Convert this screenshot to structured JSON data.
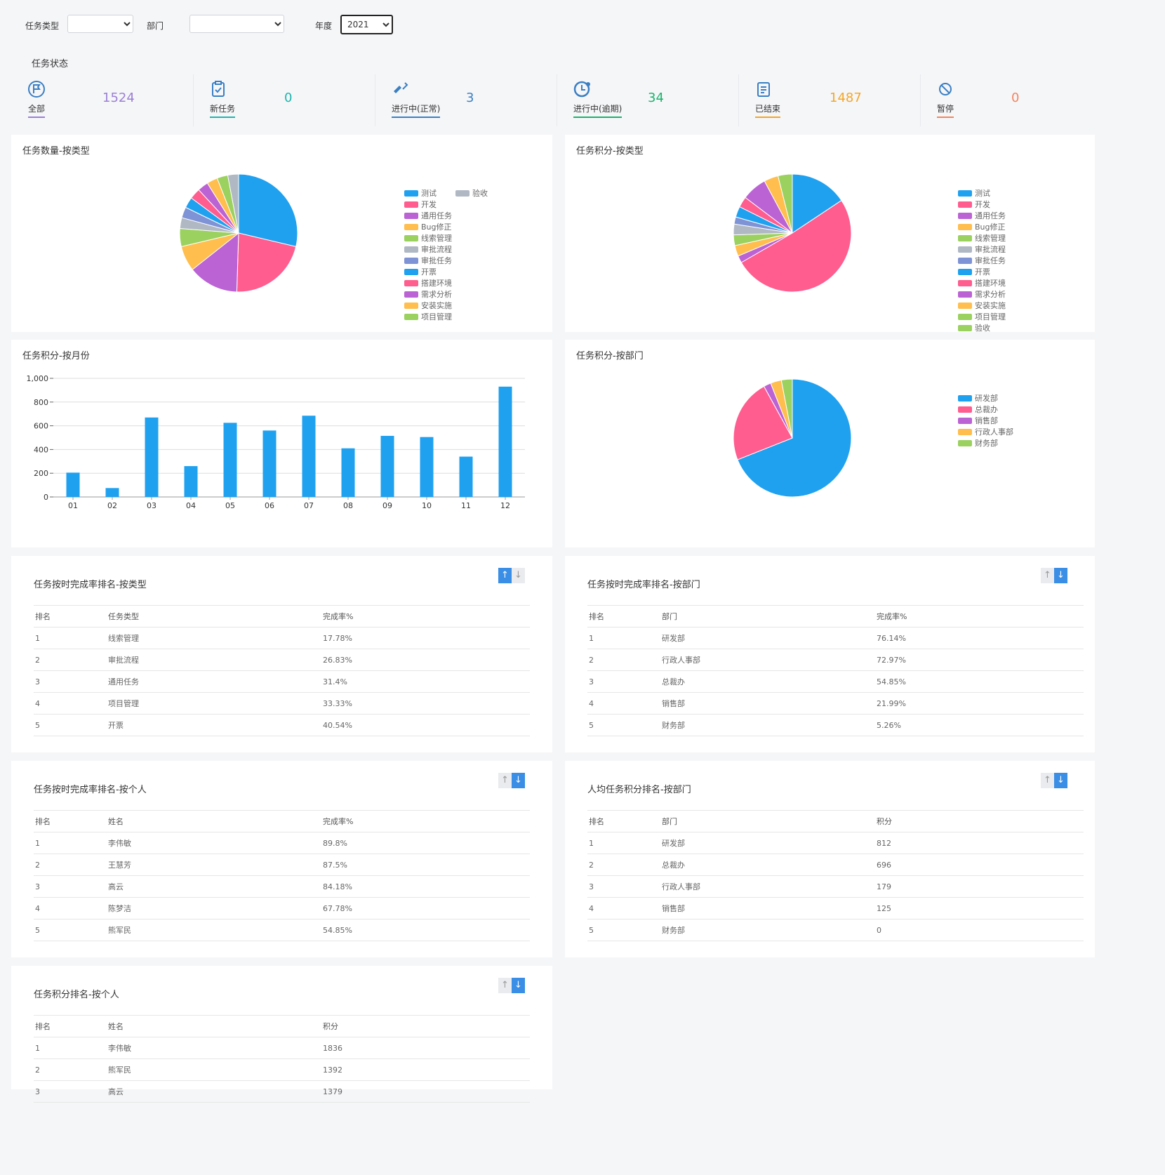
{
  "filters": {
    "type_label": "任务类型",
    "type_value": "",
    "dept_label": "部门",
    "dept_value": "",
    "year_label": "年度",
    "year_value": "2021"
  },
  "status_title": "任务状态",
  "statuses": [
    {
      "label": "全部",
      "value": "1524",
      "color": "#9b7fd4",
      "icon": "flag-circle-icon"
    },
    {
      "label": "新任务",
      "value": "0",
      "color": "#1fb5ad",
      "icon": "clipboard-check-icon"
    },
    {
      "label": "进行中(正常)",
      "value": "3",
      "color": "#3a7fc4",
      "icon": "shovel-icon"
    },
    {
      "label": "进行中(逾期)",
      "value": "34",
      "color": "#19b36b",
      "icon": "clock-alert-icon"
    },
    {
      "label": "已结束",
      "value": "1487",
      "color": "#f5a623",
      "icon": "clipboard-list-icon"
    },
    {
      "label": "暂停",
      "value": "0",
      "color": "#f4845f",
      "icon": "ban-icon"
    }
  ],
  "palette": [
    "#1fa1f0",
    "#ff5d8f",
    "#bb63d4",
    "#ffbe4d",
    "#9bd15f",
    "#b0b8c4",
    "#7e93d5"
  ],
  "charts": {
    "count_by_type": {
      "title": "任务数量-按类型"
    },
    "points_by_type": {
      "title": "任务积分-按类型"
    },
    "points_by_month": {
      "title": "任务积分-按月份"
    },
    "points_by_dept": {
      "title": "任务积分-按部门"
    }
  },
  "chart_data": [
    {
      "type": "pie",
      "title": "任务数量-按类型",
      "labels": [
        "测试",
        "开发",
        "通用任务",
        "Bug修正",
        "线索管理",
        "审批流程",
        "审批任务",
        "开票",
        "搭建环境",
        "需求分析",
        "安装实施",
        "项目管理",
        "验收"
      ],
      "values": [
        29,
        22,
        14,
        7,
        5,
        3,
        3,
        3,
        3,
        3,
        3,
        3,
        3
      ],
      "colors": [
        "#1fa1f0",
        "#ff5d8f",
        "#bb63d4",
        "#ffbe4d",
        "#9bd15f",
        "#b0b8c4",
        "#7e93d5",
        "#1fa1f0",
        "#ff5d8f",
        "#bb63d4",
        "#ffbe4d",
        "#9bd15f",
        "#b0b8c4"
      ]
    },
    {
      "type": "pie",
      "title": "任务积分-按类型",
      "labels": [
        "测试",
        "开发",
        "通用任务",
        "Bug修正",
        "线索管理",
        "审批流程",
        "审批任务",
        "开票",
        "搭建环境",
        "需求分析",
        "安装实施",
        "项目管理",
        "验收"
      ],
      "values": [
        16,
        52,
        2,
        3,
        3,
        3,
        2,
        3,
        3,
        7,
        4,
        4,
        0
      ],
      "colors": [
        "#1fa1f0",
        "#ff5d8f",
        "#bb63d4",
        "#ffbe4d",
        "#9bd15f",
        "#b0b8c4",
        "#7e93d5",
        "#1fa1f0",
        "#ff5d8f",
        "#bb63d4",
        "#ffbe4d",
        "#9bd15f",
        "#9bd15f"
      ]
    },
    {
      "type": "bar",
      "title": "任务积分-按月份",
      "categories": [
        "01",
        "02",
        "03",
        "04",
        "05",
        "06",
        "07",
        "08",
        "09",
        "10",
        "11",
        "12"
      ],
      "values": [
        205,
        75,
        670,
        260,
        625,
        560,
        685,
        410,
        515,
        505,
        340,
        930
      ],
      "ylim": [
        0,
        1000
      ],
      "yticks": [
        "0",
        "200",
        "400",
        "600",
        "800",
        "1,000"
      ],
      "color": "#1fa1f0"
    },
    {
      "type": "pie",
      "title": "任务积分-按部门",
      "labels": [
        "研发部",
        "总裁办",
        "销售部",
        "行政人事部",
        "财务部"
      ],
      "values": [
        69,
        23,
        2,
        3,
        3
      ],
      "colors": [
        "#1fa1f0",
        "#ff5d8f",
        "#bb63d4",
        "#ffbe4d",
        "#9bd15f"
      ]
    }
  ],
  "rankings": [
    {
      "title": "任务按时完成率排名-按类型",
      "sort": "asc",
      "headers": [
        "排名",
        "任务类型",
        "完成率%"
      ],
      "rows": [
        [
          "1",
          "线索管理",
          "17.78%"
        ],
        [
          "2",
          "审批流程",
          "26.83%"
        ],
        [
          "3",
          "通用任务",
          "31.4%"
        ],
        [
          "4",
          "项目管理",
          "33.33%"
        ],
        [
          "5",
          "开票",
          "40.54%"
        ]
      ]
    },
    {
      "title": "任务按时完成率排名-按部门",
      "sort": "desc",
      "headers": [
        "排名",
        "部门",
        "完成率%"
      ],
      "rows": [
        [
          "1",
          "研发部",
          "76.14%"
        ],
        [
          "2",
          "行政人事部",
          "72.97%"
        ],
        [
          "3",
          "总裁办",
          "54.85%"
        ],
        [
          "4",
          "销售部",
          "21.99%"
        ],
        [
          "5",
          "财务部",
          "5.26%"
        ]
      ]
    },
    {
      "title": "任务按时完成率排名-按个人",
      "sort": "desc",
      "headers": [
        "排名",
        "姓名",
        "完成率%"
      ],
      "rows": [
        [
          "1",
          "李伟敏",
          "89.8%"
        ],
        [
          "2",
          "王慧芳",
          "87.5%"
        ],
        [
          "3",
          "高云",
          "84.18%"
        ],
        [
          "4",
          "陈梦洁",
          "67.78%"
        ],
        [
          "5",
          "熊军民",
          "54.85%"
        ]
      ]
    },
    {
      "title": "人均任务积分排名-按部门",
      "sort": "desc",
      "headers": [
        "排名",
        "部门",
        "积分"
      ],
      "rows": [
        [
          "1",
          "研发部",
          "812"
        ],
        [
          "2",
          "总裁办",
          "696"
        ],
        [
          "3",
          "行政人事部",
          "179"
        ],
        [
          "4",
          "销售部",
          "125"
        ],
        [
          "5",
          "财务部",
          "0"
        ]
      ]
    },
    {
      "title": "任务积分排名-按个人",
      "sort": "desc",
      "headers": [
        "排名",
        "姓名",
        "积分"
      ],
      "rows": [
        [
          "1",
          "李伟敏",
          "1836"
        ],
        [
          "2",
          "熊军民",
          "1392"
        ],
        [
          "3",
          "高云",
          "1379"
        ]
      ]
    }
  ],
  "sort_glyphs": {
    "asc": "↑",
    "desc": "↓"
  }
}
